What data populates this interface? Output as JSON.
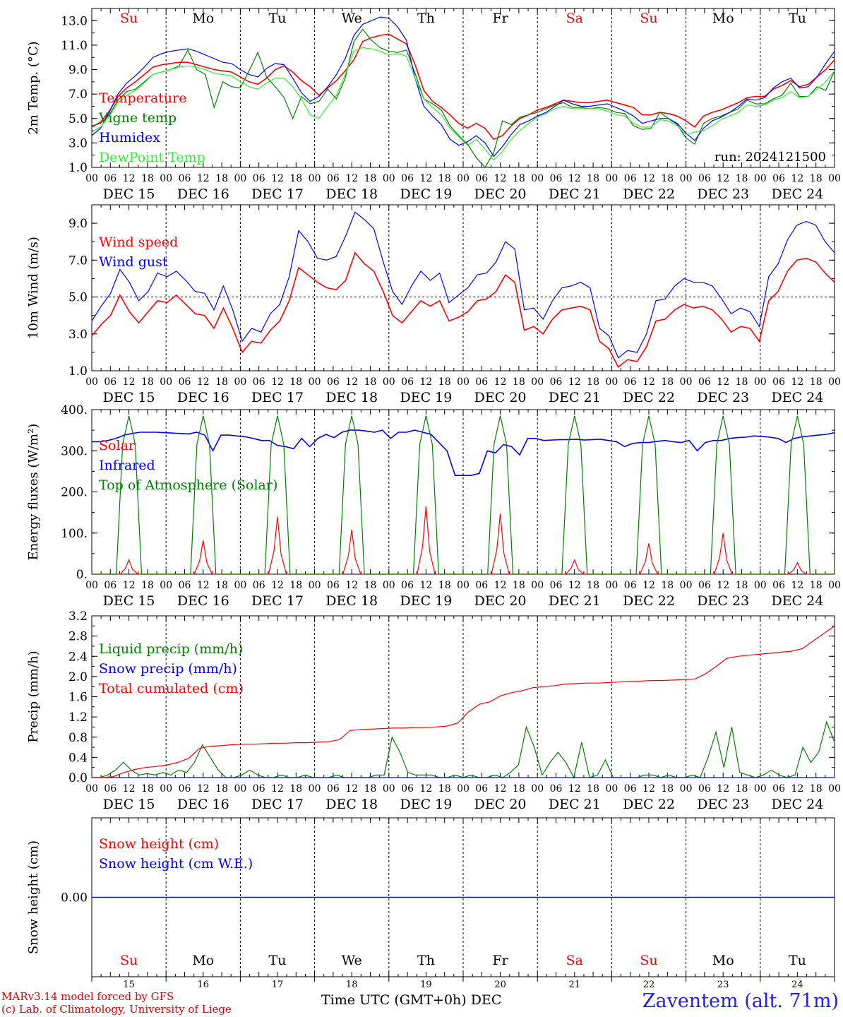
{
  "chart_data": [
    {
      "type": "line",
      "ylabel": "2m Temp. (°C)",
      "ylim": [
        1.0,
        14.0
      ],
      "yticks": [
        "1.0",
        "3.0",
        "5.0",
        "7.0",
        "9.0",
        "11.0",
        "13.0"
      ],
      "run_label": "run: 2024121500",
      "series": [
        {
          "name": "Temperature",
          "color": "#ff0000",
          "values": [
            4.3,
            4.7,
            5.6,
            6.8,
            7.5,
            8.0,
            8.6,
            9.2,
            9.4,
            9.5,
            9.6,
            9.6,
            9.4,
            9.2,
            9.0,
            8.9,
            8.8,
            8.4,
            8.0,
            7.8,
            8.3,
            9.0,
            9.3,
            8.8,
            8.1,
            7.6,
            6.9,
            7.5,
            8.1,
            8.9,
            9.8,
            11.3,
            11.6,
            11.8,
            11.9,
            11.5,
            11.1,
            9.4,
            7.3,
            6.4,
            5.9,
            5.3,
            4.6,
            4.2,
            4.6,
            4.2,
            3.3,
            3.6,
            4.4,
            5.0,
            5.3,
            5.7,
            5.9,
            6.2,
            6.5,
            6.4,
            6.3,
            6.3,
            6.4,
            6.5,
            6.3,
            6.1,
            5.9,
            5.3,
            5.3,
            5.5,
            5.4,
            5.2,
            4.8,
            4.3,
            5.2,
            5.5,
            5.7,
            6.0,
            6.3,
            6.7,
            6.8,
            6.8,
            7.4,
            7.7,
            8.1,
            7.6,
            7.8,
            8.4,
            9.0,
            9.8
          ]
        },
        {
          "name": "Vigne temp",
          "color": "#008000",
          "values": [
            4.4,
            4.6,
            5.3,
            6.5,
            7.2,
            7.4,
            8.0,
            8.6,
            8.8,
            9.0,
            9.3,
            10.6,
            9.0,
            8.6,
            5.9,
            8.0,
            7.6,
            7.5,
            8.9,
            10.4,
            8.4,
            7.6,
            6.7,
            5.0,
            6.8,
            6.2,
            6.4,
            7.4,
            6.6,
            8.3,
            11.3,
            12.3,
            11.4,
            10.8,
            10.5,
            10.4,
            10.6,
            8.7,
            6.6,
            6.2,
            5.7,
            4.4,
            3.6,
            2.9,
            1.8,
            1.0,
            2.2,
            4.8,
            4.5,
            5.1,
            5.3,
            5.5,
            5.8,
            6.1,
            6.3,
            5.9,
            5.9,
            5.8,
            5.9,
            5.8,
            5.5,
            5.4,
            4.4,
            4.1,
            4.2,
            5.5,
            5.0,
            4.5,
            3.4,
            2.9,
            4.6,
            5.0,
            5.2,
            5.5,
            5.8,
            6.5,
            6.2,
            6.2,
            6.6,
            6.9,
            7.9,
            6.8,
            6.8,
            7.6,
            7.3,
            8.9
          ]
        },
        {
          "name": "Humidex",
          "color": "#0000ff",
          "values": [
            3.6,
            4.2,
            5.5,
            7.0,
            7.9,
            8.5,
            9.2,
            10.0,
            10.3,
            10.5,
            10.6,
            10.7,
            10.5,
            10.2,
            9.9,
            9.6,
            9.5,
            9.0,
            8.6,
            8.4,
            9.1,
            9.5,
            9.4,
            8.3,
            7.1,
            6.4,
            6.8,
            7.6,
            8.6,
            9.9,
            11.8,
            12.7,
            13.0,
            13.3,
            13.2,
            12.5,
            11.4,
            8.3,
            6.0,
            5.2,
            4.5,
            3.3,
            2.8,
            3.1,
            3.6,
            3.0,
            1.9,
            2.7,
            3.7,
            4.5,
            4.8,
            5.2,
            5.5,
            6.0,
            6.5,
            6.2,
            6.0,
            6.0,
            6.1,
            6.2,
            5.9,
            5.6,
            5.2,
            4.6,
            4.8,
            5.0,
            5.0,
            4.6,
            3.8,
            3.2,
            4.2,
            4.8,
            5.1,
            5.5,
            6.0,
            6.6,
            6.5,
            6.7,
            7.5,
            8.0,
            8.3,
            7.5,
            7.6,
            8.4,
            9.5,
            10.5
          ]
        },
        {
          "name": "DewPoint Temp",
          "color": "#33ee33",
          "values": [
            3.9,
            4.3,
            5.2,
            6.3,
            6.9,
            7.3,
            7.9,
            8.6,
            8.8,
            9.0,
            9.2,
            9.3,
            9.2,
            9.0,
            8.7,
            8.6,
            8.5,
            8.0,
            7.6,
            7.4,
            7.9,
            8.3,
            8.3,
            7.6,
            6.6,
            5.3,
            5.0,
            6.0,
            6.9,
            8.6,
            10.5,
            10.8,
            10.7,
            10.5,
            10.2,
            10.3,
            10.1,
            8.3,
            6.6,
            5.9,
            5.3,
            4.2,
            3.5,
            2.8,
            3.3,
            2.5,
            1.6,
            2.3,
            3.3,
            4.0,
            4.6,
            5.1,
            5.4,
            5.8,
            6.0,
            5.8,
            5.8,
            5.8,
            5.8,
            5.6,
            5.3,
            5.2,
            4.6,
            4.3,
            4.3,
            4.9,
            4.8,
            4.4,
            3.7,
            3.9,
            4.0,
            4.4,
            4.9,
            5.2,
            5.5,
            6.1,
            6.0,
            6.1,
            6.5,
            6.7,
            7.2,
            6.7,
            6.8,
            7.4,
            8.0,
            8.9
          ]
        }
      ]
    },
    {
      "type": "line",
      "ylabel": "10m Wind (m/s)",
      "ylim": [
        1.0,
        10.0
      ],
      "yticks": [
        "1.0",
        "3.0",
        "5.0",
        "7.0",
        "9.0"
      ],
      "reference_line": 5.0,
      "series": [
        {
          "name": "Wind speed",
          "color": "#ff0000",
          "values": [
            2.9,
            3.5,
            4.0,
            5.1,
            4.2,
            3.6,
            4.2,
            4.8,
            4.7,
            5.1,
            4.6,
            4.1,
            4.0,
            3.3,
            4.4,
            3.3,
            2.0,
            2.6,
            2.5,
            3.2,
            3.7,
            4.8,
            6.6,
            6.2,
            5.8,
            5.5,
            5.4,
            5.9,
            7.4,
            6.8,
            6.4,
            5.3,
            4.0,
            3.6,
            4.2,
            4.8,
            4.5,
            4.8,
            3.7,
            3.9,
            4.2,
            4.8,
            4.9,
            5.3,
            6.2,
            5.8,
            3.2,
            3.4,
            3.0,
            3.8,
            4.3,
            4.4,
            4.5,
            4.3,
            2.6,
            2.2,
            1.2,
            1.6,
            1.5,
            2.3,
            3.7,
            3.8,
            4.3,
            4.6,
            4.4,
            4.5,
            4.3,
            3.8,
            3.1,
            3.4,
            3.3,
            2.6,
            4.8,
            5.3,
            6.4,
            7.0,
            7.1,
            6.9,
            6.3,
            5.8
          ]
        },
        {
          "name": "Wind gust",
          "color": "#0000ff",
          "values": [
            3.7,
            4.5,
            5.2,
            6.5,
            5.8,
            4.8,
            5.3,
            6.3,
            6.1,
            6.4,
            5.9,
            5.3,
            5.2,
            4.3,
            5.6,
            4.3,
            2.6,
            3.3,
            3.1,
            4.1,
            4.6,
            6.1,
            8.6,
            8.0,
            7.1,
            7.0,
            7.2,
            8.3,
            9.6,
            9.2,
            8.7,
            6.9,
            5.3,
            4.6,
            5.6,
            6.4,
            5.9,
            6.3,
            4.7,
            5.1,
            5.5,
            6.2,
            6.3,
            6.9,
            8.0,
            7.6,
            4.3,
            4.4,
            3.8,
            4.8,
            5.5,
            5.6,
            5.8,
            5.5,
            3.3,
            2.9,
            1.7,
            2.1,
            2.0,
            3.0,
            4.8,
            4.9,
            5.6,
            6.0,
            5.8,
            5.8,
            5.6,
            4.9,
            4.1,
            4.4,
            4.2,
            3.4,
            6.1,
            6.8,
            8.1,
            8.9,
            9.1,
            8.9,
            8.0,
            7.4
          ]
        }
      ]
    },
    {
      "type": "line",
      "ylabel": "Energy fluxes (W/m²)",
      "ylim": [
        0,
        400
      ],
      "yticks": [
        "0.",
        "100.",
        "200.",
        "300.",
        "400."
      ],
      "series": [
        {
          "name": "Solar",
          "color": "#ff0000",
          "peaks": [
            35,
            82,
            140,
            108,
            165,
            147,
            35,
            75,
            100,
            28
          ]
        },
        {
          "name": "Infrared",
          "color": "#0000ff",
          "values": [
            322,
            322,
            325,
            330,
            338,
            342,
            345,
            345,
            345,
            344,
            343,
            342,
            341,
            345,
            338,
            300,
            338,
            338,
            336,
            334,
            330,
            325,
            325,
            313,
            310,
            305,
            330,
            310,
            330,
            340,
            332,
            345,
            350,
            350,
            348,
            345,
            350,
            330,
            345,
            345,
            350,
            345,
            340,
            320,
            300,
            240,
            240,
            240,
            245,
            300,
            295,
            315,
            310,
            290,
            330,
            330,
            325,
            326,
            327,
            327,
            328,
            326,
            327,
            328,
            325,
            322,
            310,
            318,
            320,
            320,
            323,
            325,
            322,
            320,
            325,
            300,
            320,
            325,
            325,
            330,
            332,
            333,
            336,
            335,
            333,
            330,
            320,
            330,
            334,
            336,
            338,
            340,
            344
          ]
        },
        {
          "name": "Top of Atmosphere (Solar)",
          "color": "#008000",
          "peaks": [
            385,
            385,
            385,
            385,
            385,
            385,
            385,
            385,
            385,
            385
          ]
        }
      ]
    },
    {
      "type": "line",
      "ylabel": "Precip (mm/h)",
      "ylim": [
        0.0,
        3.2
      ],
      "yticks": [
        "0.0",
        "0.4",
        "0.8",
        "1.2",
        "1.6",
        "2.0",
        "2.4",
        "2.8",
        "3.2"
      ],
      "series": [
        {
          "name": "Liquid precip (mm/h)",
          "color": "#008000",
          "values": [
            0.0,
            0.0,
            0.05,
            0.15,
            0.3,
            0.15,
            0.05,
            0.08,
            0.05,
            0.1,
            0.05,
            0.15,
            0.1,
            0.3,
            0.65,
            0.4,
            0.15,
            0.0,
            0.0,
            0.05,
            0.15,
            0.05,
            0.0,
            0.0,
            0.05,
            0.0,
            0.0,
            0.05,
            0.0,
            0.0,
            0.0,
            0.05,
            0.0,
            0.0,
            0.0,
            0.0,
            0.05,
            0.05,
            0.8,
            0.5,
            0.1,
            0.05,
            0.05,
            0.05,
            0.0,
            0.0,
            0.05,
            0.0,
            0.05,
            0.0,
            0.0,
            0.05,
            0.0,
            0.1,
            0.25,
            1.0,
            0.6,
            0.05,
            0.3,
            0.5,
            0.3,
            0.0,
            0.7,
            0.0,
            0.05,
            0.35,
            0.0,
            0.0,
            0.0,
            0.0,
            0.05,
            0.05,
            0.0,
            0.05,
            0.0,
            0.0,
            0.05,
            0.0,
            0.4,
            0.9,
            0.2,
            1.0,
            0.1,
            0.05,
            0.0,
            0.05,
            0.15,
            0.05,
            0.0,
            0.05,
            0.6,
            0.3,
            0.5,
            1.1,
            0.7
          ]
        },
        {
          "name": "Snow precip (mm/h)",
          "color": "#0000ff",
          "values": [
            0.0,
            0.0
          ]
        },
        {
          "name": "Total cumulated (cm)",
          "color": "#ff0000",
          "values": [
            0.0,
            0.0,
            0.02,
            0.1,
            0.16,
            0.2,
            0.22,
            0.25,
            0.3,
            0.38,
            0.58,
            0.62,
            0.63,
            0.65,
            0.66,
            0.66,
            0.67,
            0.68,
            0.68,
            0.69,
            0.69,
            0.7,
            0.71,
            0.75,
            0.93,
            0.95,
            0.96,
            0.97,
            0.98,
            0.98,
            0.99,
            0.99,
            1.0,
            1.02,
            1.08,
            1.3,
            1.45,
            1.5,
            1.62,
            1.68,
            1.72,
            1.78,
            1.8,
            1.82,
            1.85,
            1.86,
            1.87,
            1.87,
            1.88,
            1.89,
            1.9,
            1.91,
            1.92,
            1.92,
            1.93,
            1.94,
            1.95,
            2.05,
            2.2,
            2.36,
            2.4,
            2.42,
            2.44,
            2.46,
            2.48,
            2.5,
            2.55,
            2.7,
            2.85,
            3.0
          ]
        }
      ]
    },
    {
      "type": "line",
      "ylabel": "Snow height (cm)",
      "yticks": [
        "0.00"
      ],
      "series": [
        {
          "name": "Snow height (cm)",
          "color": "#ff0000",
          "values": [
            0.0,
            0.0
          ]
        },
        {
          "name": "Snow height (cm W.E.)",
          "color": "#0000ff",
          "values": [
            0.0,
            0.0
          ]
        }
      ]
    }
  ],
  "days": [
    {
      "abbr": "Su",
      "label": "DEC 15",
      "num": "15",
      "weekend": true
    },
    {
      "abbr": "Mo",
      "label": "DEC 16",
      "num": "16",
      "weekend": false
    },
    {
      "abbr": "Tu",
      "label": "DEC 17",
      "num": "17",
      "weekend": false
    },
    {
      "abbr": "We",
      "label": "DEC 18",
      "num": "18",
      "weekend": false
    },
    {
      "abbr": "Th",
      "label": "DEC 19",
      "num": "19",
      "weekend": false
    },
    {
      "abbr": "Fr",
      "label": "DEC 20",
      "num": "20",
      "weekend": false
    },
    {
      "abbr": "Sa",
      "label": "DEC 21",
      "num": "21",
      "weekend": true
    },
    {
      "abbr": "Su",
      "label": "DEC 22",
      "num": "22",
      "weekend": true
    },
    {
      "abbr": "Mo",
      "label": "DEC 23",
      "num": "23",
      "weekend": false
    },
    {
      "abbr": "Tu",
      "label": "DEC 24",
      "num": "24",
      "weekend": false
    }
  ],
  "hour_ticks": [
    "00",
    "06",
    "12",
    "18"
  ],
  "colors": {
    "weekend": "#ff0000",
    "weekday": "#000000"
  },
  "footer": {
    "credit_line1": "MARv3.14 model forced by GFS",
    "credit_line2": "(c) Lab. of Climatology, University of Liege",
    "xaxis_title": "Time UTC (GMT+0h) DEC",
    "station": "Zaventem (alt. 71m)"
  }
}
